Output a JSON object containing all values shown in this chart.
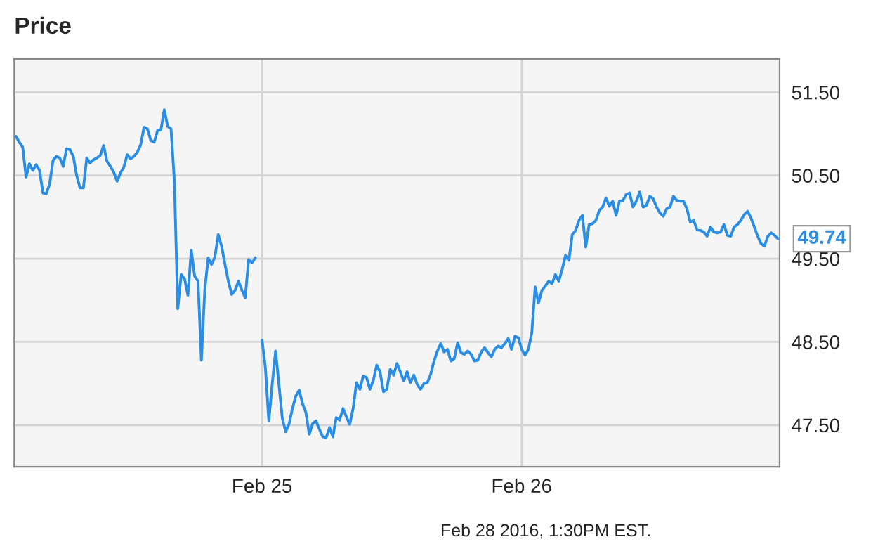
{
  "chart_data": {
    "type": "line",
    "title": "Price",
    "categories": [
      null,
      null,
      null,
      null,
      null,
      null,
      null,
      null,
      null,
      null,
      null,
      null,
      null,
      null,
      null,
      null,
      null,
      null,
      null,
      null,
      null,
      null,
      null,
      null,
      null,
      null,
      null,
      null,
      null,
      null,
      null,
      null,
      null,
      null,
      null,
      null,
      null,
      null,
      null,
      null,
      null,
      null,
      null,
      null,
      null,
      null,
      null,
      null,
      null,
      null,
      null,
      null,
      null,
      null,
      null,
      null,
      null,
      null,
      null,
      null,
      null,
      null,
      null,
      null,
      null,
      null,
      null,
      null,
      null,
      null,
      null,
      null,
      null,
      "Feb 25",
      null,
      null,
      null,
      null,
      null,
      null,
      null,
      null,
      null,
      null,
      null,
      null,
      null,
      null,
      null,
      null,
      null,
      null,
      null,
      null,
      null,
      null,
      null,
      null,
      null,
      null,
      null,
      null,
      null,
      null,
      null,
      null,
      null,
      null,
      null,
      null,
      null,
      null,
      null,
      null,
      null,
      null,
      null,
      null,
      null,
      null,
      null,
      null,
      null,
      null,
      null,
      null,
      null,
      null,
      null,
      null,
      null,
      null,
      null,
      null,
      null,
      null,
      null,
      null,
      null,
      null,
      null,
      null,
      null,
      null,
      null,
      null,
      null,
      null,
      null,
      null,
      "Feb 26",
      null,
      null,
      null,
      null,
      null,
      null,
      null,
      null,
      null,
      null,
      null,
      null,
      null,
      null,
      null,
      null,
      null,
      null,
      null,
      null,
      null,
      null,
      null,
      null,
      null,
      null,
      null,
      null,
      null,
      null,
      null,
      null,
      null,
      null,
      null,
      null,
      null,
      null,
      null,
      null,
      null,
      null,
      null,
      null,
      null,
      null,
      null,
      null,
      null,
      null,
      null,
      null,
      null,
      null,
      null,
      null,
      null,
      null,
      null,
      null,
      null,
      null,
      null,
      null,
      null,
      null,
      null,
      null,
      null,
      null,
      null,
      null,
      null,
      null,
      null,
      null
    ],
    "series": [
      {
        "color": "#2a8ee6",
        "values": [
          50.97,
          50.9,
          50.84,
          50.48,
          50.64,
          50.56,
          50.63,
          50.56,
          50.29,
          50.28,
          50.4,
          50.68,
          50.73,
          50.71,
          50.61,
          50.82,
          50.81,
          50.73,
          50.5,
          50.35,
          50.35,
          50.71,
          50.65,
          50.69,
          50.71,
          50.74,
          50.86,
          50.67,
          50.61,
          50.54,
          50.43,
          50.53,
          50.6,
          50.75,
          50.7,
          50.73,
          50.78,
          50.87,
          51.08,
          51.06,
          50.92,
          50.9,
          51.04,
          51.05,
          51.29,
          51.09,
          51.06,
          50.42,
          48.9,
          49.31,
          49.26,
          49.06,
          49.6,
          49.29,
          49.23,
          48.28,
          49.12,
          49.51,
          49.43,
          49.52,
          49.79,
          49.65,
          49.43,
          49.23,
          49.07,
          49.12,
          49.23,
          49.12,
          49.03,
          49.49,
          49.45,
          49.51,
          null,
          48.52,
          48.18,
          47.55,
          47.99,
          48.39,
          47.99,
          47.58,
          47.42,
          47.51,
          47.7,
          47.85,
          47.92,
          47.76,
          47.65,
          47.39,
          47.52,
          47.55,
          47.45,
          47.36,
          47.35,
          47.47,
          47.36,
          47.59,
          47.56,
          47.7,
          47.6,
          47.51,
          47.7,
          48.01,
          47.93,
          48.09,
          48.07,
          47.93,
          48.04,
          48.22,
          48.14,
          47.9,
          47.93,
          48.17,
          48.1,
          48.24,
          48.14,
          48.03,
          48.14,
          48.01,
          48.1,
          47.99,
          47.93,
          48.0,
          48.01,
          48.11,
          48.27,
          48.39,
          48.48,
          48.38,
          48.41,
          48.27,
          48.3,
          48.49,
          48.37,
          48.35,
          48.39,
          48.35,
          48.27,
          48.28,
          48.38,
          48.43,
          48.37,
          48.32,
          48.41,
          48.45,
          48.43,
          48.48,
          48.54,
          48.41,
          48.57,
          48.55,
          48.41,
          48.34,
          48.41,
          48.61,
          49.16,
          48.97,
          49.12,
          49.17,
          49.23,
          49.2,
          49.31,
          49.23,
          49.37,
          49.54,
          49.48,
          49.79,
          49.84,
          49.96,
          50.02,
          49.64,
          49.91,
          49.92,
          49.96,
          50.08,
          50.12,
          50.23,
          50.13,
          50.19,
          50.02,
          50.19,
          50.2,
          50.27,
          50.29,
          50.12,
          50.19,
          50.3,
          50.12,
          50.14,
          50.25,
          50.22,
          50.12,
          50.05,
          50.01,
          50.1,
          50.12,
          50.25,
          50.2,
          50.19,
          50.19,
          50.1,
          49.94,
          49.96,
          49.85,
          49.84,
          49.82,
          49.77,
          49.88,
          49.82,
          49.81,
          49.82,
          49.91,
          49.78,
          49.77,
          49.88,
          49.91,
          49.96,
          50.03,
          50.07,
          49.99,
          49.88,
          49.77,
          49.68,
          49.65,
          49.77,
          49.81,
          49.78,
          49.74
        ]
      }
    ],
    "ylim": [
      47.0,
      51.9
    ],
    "yticks": [
      {
        "value": 47.5,
        "label": "47.50"
      },
      {
        "value": 48.5,
        "label": "48.50"
      },
      {
        "value": 49.5,
        "label": "49.50"
      },
      {
        "value": 50.5,
        "label": "50.50"
      },
      {
        "value": 51.5,
        "label": "51.50"
      }
    ],
    "grid": true,
    "legend": false,
    "annotations": [
      "49.74",
      "Feb 28 2016, 1:30PM EST."
    ]
  }
}
